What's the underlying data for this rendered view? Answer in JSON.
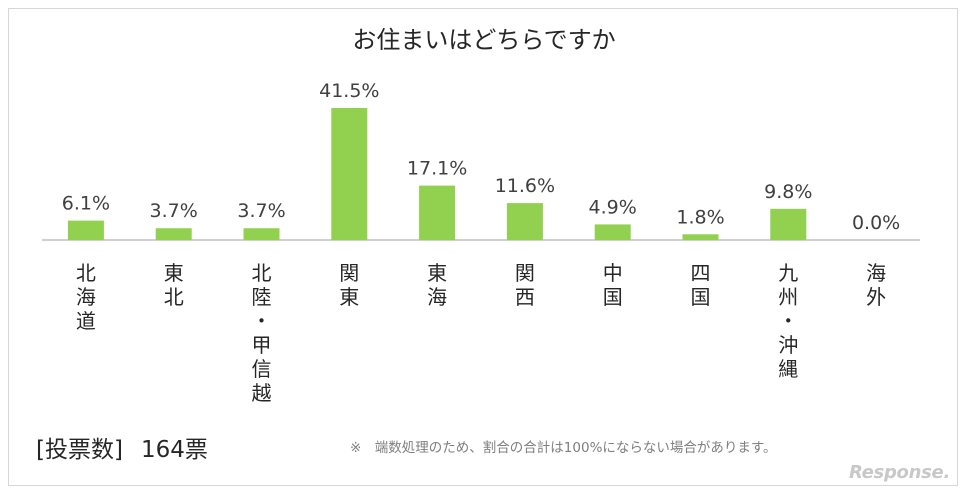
{
  "chart_data": {
    "type": "bar",
    "title": "お住まいはどちらですか",
    "categories": [
      "北海道",
      "東北",
      "北陸・甲信越",
      "関東",
      "東海",
      "関西",
      "中国",
      "四国",
      "九州・沖縄",
      "海外"
    ],
    "values": [
      6.1,
      3.7,
      3.7,
      41.5,
      17.1,
      11.6,
      4.9,
      1.8,
      9.8,
      0.0
    ],
    "value_labels": [
      "6.1%",
      "3.7%",
      "3.7%",
      "41.5%",
      "17.1%",
      "11.6%",
      "4.9%",
      "1.8%",
      "9.8%",
      "0.0%"
    ],
    "unit": "%",
    "xlabel": "",
    "ylabel": "",
    "ylim": [
      0,
      45
    ],
    "grid": false,
    "bar_color": "#92d050"
  },
  "votes": {
    "label": "[投票数]",
    "count": "164票"
  },
  "footnote": "※　端数処理のため、割合の合計は100%にならない場合があります。",
  "brand": "Response."
}
